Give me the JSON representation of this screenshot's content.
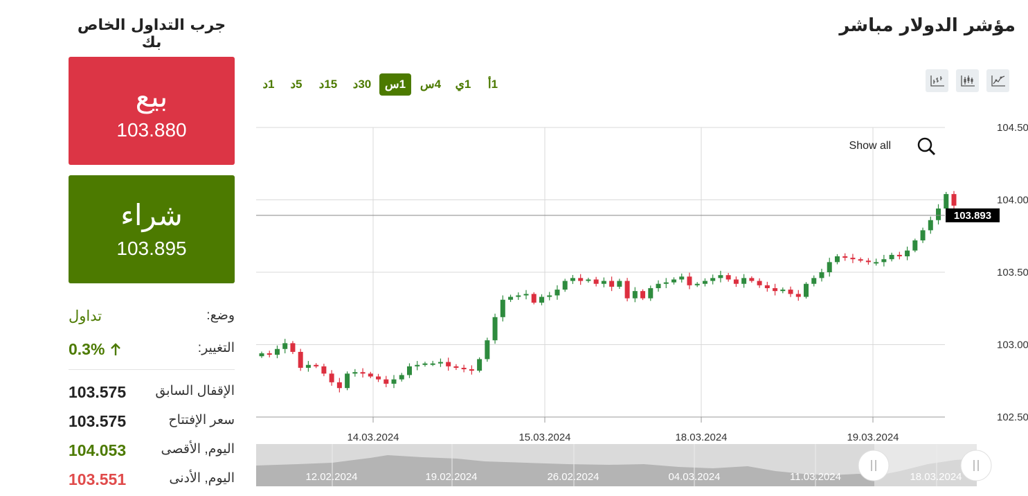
{
  "header": {
    "title": "مؤشر الدولار مباشر",
    "trial_label": "جرب التداول الخاص بك"
  },
  "trade": {
    "sell_label": "بيع",
    "sell_price": "103.880",
    "buy_label": "شراء",
    "buy_price": "103.895"
  },
  "stats": {
    "status_label": "وضع:",
    "status_value": "تداول",
    "change_label": "التغيير:",
    "change_value": "0.3%",
    "prev_close_label": "الإقفال السابق",
    "prev_close_value": "103.575",
    "open_label": "سعر الإفتتاح",
    "open_value": "103.575",
    "high_label": "اليوم, الأقصى",
    "high_value": "104.053",
    "low_label": "اليوم, الأدنى",
    "low_value": "103.551"
  },
  "timeframes": [
    "1أ",
    "1ي",
    "4س",
    "1س",
    "30د",
    "15د",
    "5د",
    "1د"
  ],
  "active_timeframe": "1س",
  "chart_types": [
    "line-chart-icon",
    "candlestick-chart-icon",
    "bar-chart-icon"
  ],
  "colors": {
    "up": "#2e8b3e",
    "down": "#dc2f3f",
    "accent": "#4c7a00",
    "sell": "#dc3545",
    "negative_text": "#e04b4b"
  },
  "chart_data": {
    "type": "candlestick",
    "y_ticks": [
      "104.500",
      "104.000",
      "103.500",
      "103.000",
      "102.500"
    ],
    "ylim": [
      102.5,
      104.5
    ],
    "x_ticks": [
      "14.03.2024",
      "15.03.2024",
      "18.03.2024",
      "19.03.2024"
    ],
    "current_price_label": "103.893",
    "current_price": 103.893,
    "show_all_label": "Show all",
    "navigator_labels": [
      "12.02.2024",
      "19.02.2024",
      "26.02.2024",
      "04.03.2024",
      "11.03.2024",
      "18.03.2024"
    ],
    "closes": [
      102.94,
      102.93,
      102.97,
      103.01,
      102.95,
      102.84,
      102.86,
      102.85,
      102.8,
      102.74,
      102.7,
      102.8,
      102.81,
      102.8,
      102.78,
      102.76,
      102.73,
      102.76,
      102.79,
      102.85,
      102.86,
      102.87,
      102.87,
      102.88,
      102.85,
      102.84,
      102.83,
      102.82,
      102.9,
      103.03,
      103.19,
      103.31,
      103.33,
      103.34,
      103.35,
      103.29,
      103.33,
      103.34,
      103.38,
      103.44,
      103.46,
      103.44,
      103.45,
      103.42,
      103.44,
      103.4,
      103.44,
      103.32,
      103.37,
      103.32,
      103.39,
      103.42,
      103.43,
      103.45,
      103.47,
      103.41,
      103.42,
      103.44,
      103.46,
      103.48,
      103.45,
      103.42,
      103.46,
      103.44,
      103.41,
      103.39,
      103.37,
      103.38,
      103.35,
      103.33,
      103.42,
      103.46,
      103.5,
      103.57,
      103.61,
      103.6,
      103.59,
      103.58,
      103.57,
      103.57,
      103.59,
      103.62,
      103.61,
      103.65,
      103.72,
      103.79,
      103.86,
      103.94,
      104.04,
      103.96
    ]
  }
}
